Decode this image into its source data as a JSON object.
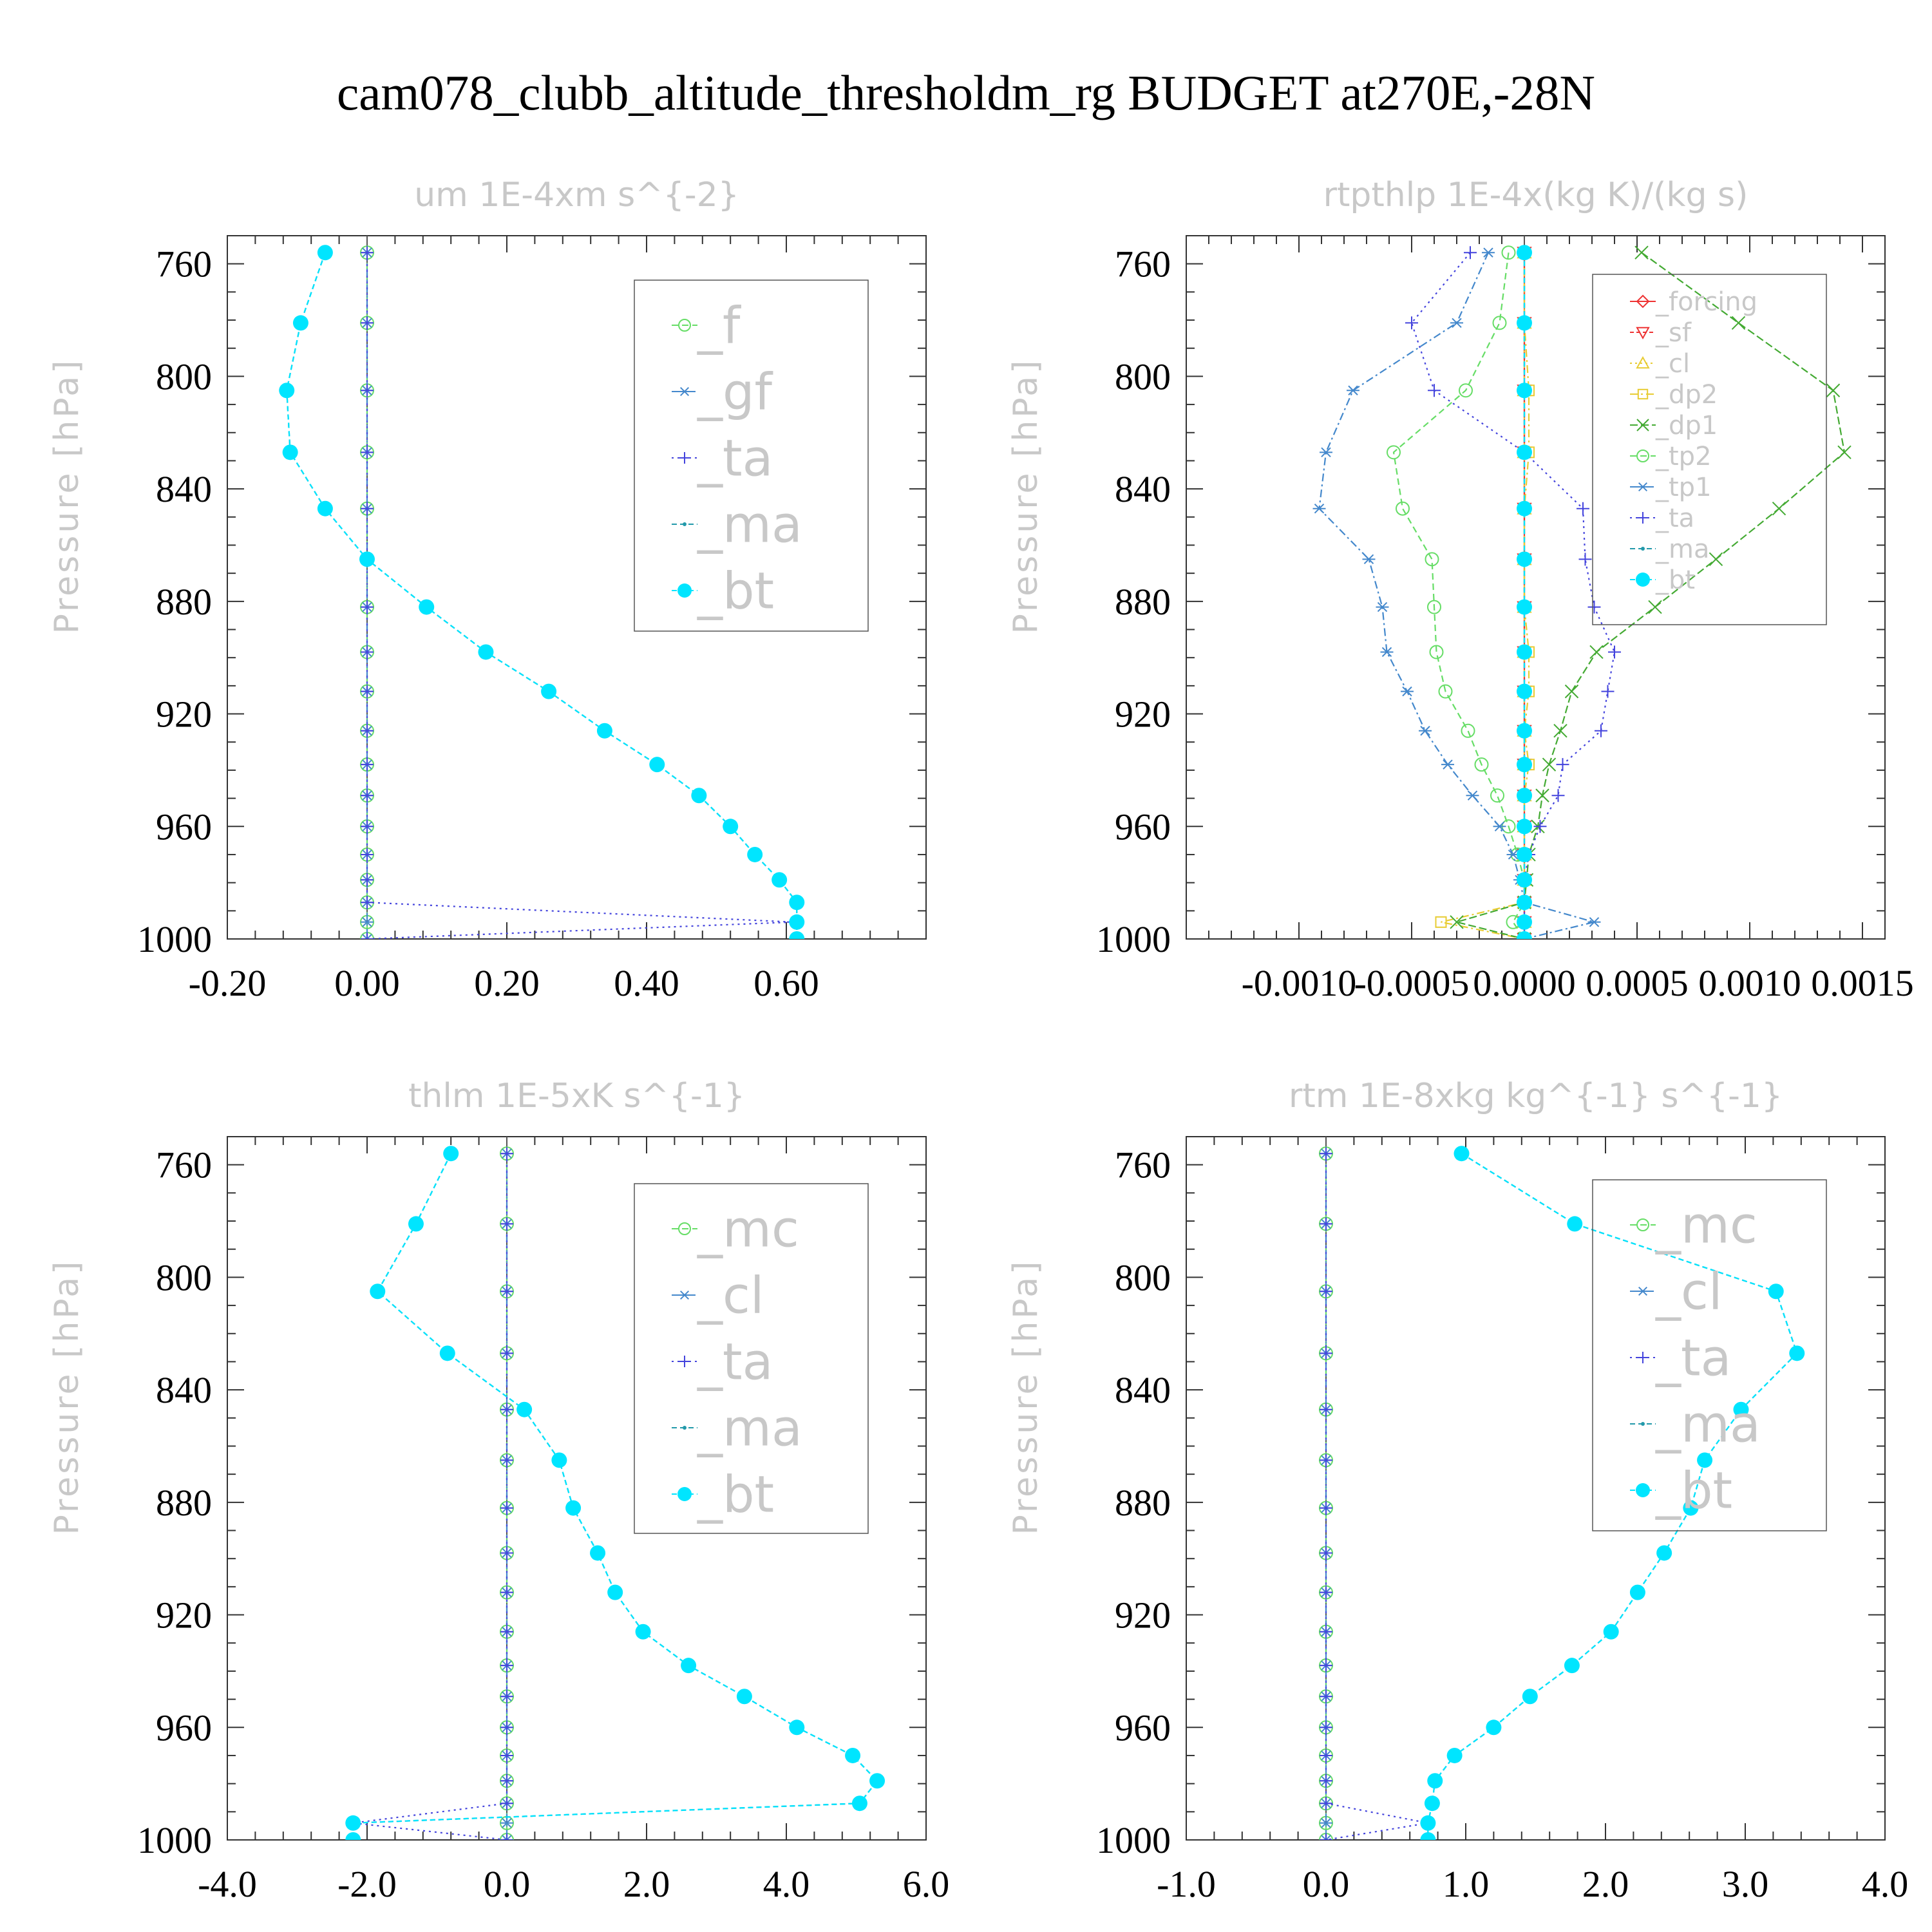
{
  "title": "cam078_clubb_altitude_thresholdm_rg  BUDGET at270E,-28N",
  "colors": {
    "f": "#66dd66",
    "gf": "#4488cc",
    "ta": "#4444dd",
    "ma": "#2299aa",
    "bt": "#00e5ff",
    "forcing": "#ee3333",
    "sf": "#ee3333",
    "cl_yellow": "#e8cc33",
    "dp2": "#e8cc33",
    "dp1": "#44aa33",
    "tp2": "#66dd66",
    "tp1": "#4488cc"
  },
  "chart_data": [
    {
      "type": "line",
      "title": "um   1E-4xm s^{-2}",
      "ylabel": "Pressure [hPa]",
      "xlim": [
        -0.2,
        0.8
      ],
      "ylim": [
        750,
        1000
      ],
      "xticks": [
        -0.2,
        0.0,
        0.2,
        0.4,
        0.6
      ],
      "xtick_labels": [
        "-0.20",
        "0.00",
        "0.20",
        "0.40",
        "0.60"
      ],
      "yticks": [
        760,
        800,
        840,
        880,
        920,
        960,
        1000
      ],
      "ytick_labels": [
        "760",
        "800",
        "840",
        "880",
        "920",
        "960",
        "1000"
      ],
      "legend_position": "top-right",
      "y": [
        756,
        781,
        805,
        827,
        847,
        865,
        882,
        898,
        912,
        926,
        938,
        949,
        960,
        970,
        979,
        987,
        994,
        1000
      ],
      "series": [
        {
          "name": "_f",
          "key": "f",
          "marker": "circle",
          "dash": "10,6",
          "values": [
            0,
            0,
            0,
            0,
            0,
            0,
            0,
            0,
            0,
            0,
            0,
            0,
            0,
            0,
            0,
            0,
            0,
            0
          ]
        },
        {
          "name": "_gf",
          "key": "gf",
          "marker": "asterisk",
          "dash": "12,5,3,5",
          "values": [
            0,
            0,
            0,
            0,
            0,
            0,
            0,
            0,
            0,
            0,
            0,
            0,
            0,
            0,
            0,
            0,
            0,
            0
          ]
        },
        {
          "name": "_ta",
          "key": "ta",
          "marker": "plus",
          "dash": "3,6",
          "values": [
            0,
            0,
            0,
            0,
            0,
            0,
            0,
            0,
            0,
            0,
            0,
            0,
            0,
            0,
            0,
            0,
            0.61,
            0
          ]
        },
        {
          "name": "_ma",
          "key": "ma",
          "marker": "dot",
          "dash": "8,5",
          "values": [
            -0.06,
            -0.095,
            -0.115,
            -0.11,
            -0.06,
            0.0,
            0.085,
            0.17,
            0.26,
            0.34,
            0.415,
            0.475,
            0.52,
            0.555,
            0.59,
            0.615,
            0.615,
            0.615
          ]
        },
        {
          "name": "_bt",
          "key": "bt",
          "marker": "filled",
          "dash": "8,5",
          "values": [
            -0.06,
            -0.095,
            -0.115,
            -0.11,
            -0.06,
            0.0,
            0.085,
            0.17,
            0.26,
            0.34,
            0.415,
            0.475,
            0.52,
            0.555,
            0.59,
            0.615,
            0.615,
            0.615
          ]
        }
      ]
    },
    {
      "type": "line",
      "title": "rtpthlp   1E-4x(kg K)/(kg s)",
      "ylabel": "Pressure [hPa]",
      "xlim": [
        -0.0015,
        0.0016
      ],
      "ylim": [
        750,
        1000
      ],
      "xticks": [
        -0.001,
        -0.0005,
        0.0,
        0.0005,
        0.001,
        0.0015
      ],
      "xtick_labels": [
        "-0.0010",
        "-0.0005",
        "0.0000",
        "0.0005",
        "0.0010",
        "0.0015"
      ],
      "yticks": [
        760,
        800,
        840,
        880,
        920,
        960,
        1000
      ],
      "ytick_labels": [
        "760",
        "800",
        "840",
        "880",
        "920",
        "960",
        "1000"
      ],
      "legend_position": "top-right",
      "y": [
        756,
        781,
        805,
        827,
        847,
        865,
        882,
        898,
        912,
        926,
        938,
        949,
        960,
        970,
        979,
        987,
        994,
        1000
      ],
      "series": [
        {
          "name": "_forcing",
          "key": "forcing",
          "marker": "diamond",
          "dash": "",
          "values": [
            0,
            0,
            0,
            0,
            0,
            0,
            0,
            0,
            0,
            0,
            0,
            0,
            0,
            0,
            0,
            0,
            0,
            0
          ]
        },
        {
          "name": "_sf",
          "key": "sf",
          "marker": "triangle-down",
          "dash": "6,4",
          "values": [
            0,
            0,
            0,
            0,
            0,
            0,
            0,
            0,
            0,
            0,
            0,
            0,
            0,
            0,
            0,
            0,
            0,
            0
          ]
        },
        {
          "name": "_cl",
          "key": "cl_yellow",
          "marker": "triangle",
          "dash": "3,5",
          "values": [
            0,
            0,
            0,
            0,
            0,
            0,
            0,
            0,
            0,
            0,
            0,
            0,
            0,
            0,
            0,
            0,
            0,
            0
          ]
        },
        {
          "name": "_dp2",
          "key": "dp2",
          "marker": "square",
          "dash": "12,5,3,5",
          "values": [
            0,
            0,
            2e-05,
            2e-05,
            0,
            0,
            0,
            2e-05,
            2e-05,
            0,
            2e-05,
            0,
            0,
            0,
            0,
            0,
            -0.00037,
            0
          ]
        },
        {
          "name": "_dp1",
          "key": "dp1",
          "marker": "cross",
          "dash": "12,5",
          "values": [
            0.00052,
            0.00095,
            0.00137,
            0.00142,
            0.00113,
            0.00085,
            0.00058,
            0.00032,
            0.00021,
            0.00016,
            0.00011,
            8e-05,
            6e-05,
            2e-05,
            1e-05,
            0,
            -0.0003,
            0
          ]
        },
        {
          "name": "_tp2",
          "key": "tp2",
          "marker": "circle",
          "dash": "10,6",
          "values": [
            -7e-05,
            -0.00011,
            -0.00026,
            -0.00058,
            -0.00054,
            -0.00041,
            -0.0004,
            -0.00039,
            -0.00035,
            -0.00025,
            -0.00019,
            -0.00012,
            -7e-05,
            -3e-05,
            0,
            0,
            -5e-05,
            0
          ]
        },
        {
          "name": "_tp1",
          "key": "tp1",
          "marker": "asterisk",
          "dash": "12,5,3,5",
          "values": [
            -0.00016,
            -0.0003,
            -0.00076,
            -0.00088,
            -0.00091,
            -0.00069,
            -0.00063,
            -0.00061,
            -0.00052,
            -0.00044,
            -0.00034,
            -0.00023,
            -0.00011,
            -5e-05,
            -2e-05,
            0,
            0.00031,
            0
          ]
        },
        {
          "name": "_ta",
          "key": "ta",
          "marker": "plus",
          "dash": "3,6",
          "values": [
            -0.00024,
            -0.0005,
            -0.0004,
            0.0,
            0.00026,
            0.00027,
            0.00031,
            0.0004,
            0.00037,
            0.00034,
            0.00017,
            0.00015,
            7e-05,
            2e-05,
            0,
            0,
            0,
            0
          ]
        },
        {
          "name": "_ma",
          "key": "ma",
          "marker": "dot",
          "dash": "8,5",
          "values": [
            0,
            0,
            0,
            0,
            0,
            0,
            0,
            0,
            0,
            0,
            0,
            0,
            0,
            0,
            0,
            0,
            0,
            0
          ]
        },
        {
          "name": "_bt",
          "key": "bt",
          "marker": "filled",
          "dash": "8,5",
          "values": [
            0,
            0,
            0,
            0,
            0,
            0,
            0,
            0,
            0,
            0,
            0,
            0,
            0,
            0,
            0,
            0,
            0,
            0
          ]
        }
      ]
    },
    {
      "type": "line",
      "title": "thlm   1E-5xK s^{-1}",
      "ylabel": "Pressure [hPa]",
      "xlim": [
        -4.0,
        6.0
      ],
      "ylim": [
        750,
        1000
      ],
      "xticks": [
        -4,
        -2,
        0,
        2,
        4,
        6
      ],
      "xtick_labels": [
        "-4.0",
        "-2.0",
        "0.0",
        "2.0",
        "4.0",
        "6.0"
      ],
      "yticks": [
        760,
        800,
        840,
        880,
        920,
        960,
        1000
      ],
      "ytick_labels": [
        "760",
        "800",
        "840",
        "880",
        "920",
        "960",
        "1000"
      ],
      "legend_position": "top-right",
      "y": [
        756,
        781,
        805,
        827,
        847,
        865,
        882,
        898,
        912,
        926,
        938,
        949,
        960,
        970,
        979,
        987,
        994,
        1000
      ],
      "series": [
        {
          "name": "_mc",
          "key": "f",
          "marker": "circle",
          "dash": "10,6",
          "values": [
            0,
            0,
            0,
            0,
            0,
            0,
            0,
            0,
            0,
            0,
            0,
            0,
            0,
            0,
            0,
            0,
            0,
            0
          ]
        },
        {
          "name": "_cl",
          "key": "gf",
          "marker": "asterisk",
          "dash": "12,5,3,5",
          "values": [
            0,
            0,
            0,
            0,
            0,
            0,
            0,
            0,
            0,
            0,
            0,
            0,
            0,
            0,
            0,
            0,
            0,
            0
          ]
        },
        {
          "name": "_ta",
          "key": "ta",
          "marker": "plus",
          "dash": "3,6",
          "values": [
            0,
            0,
            0,
            0,
            0,
            0,
            0,
            0,
            0,
            0,
            0,
            0,
            0,
            0,
            0,
            0,
            -2.2,
            0
          ]
        },
        {
          "name": "_ma",
          "key": "ma",
          "marker": "dot",
          "dash": "8,5",
          "values": [
            -0.8,
            -1.3,
            -1.85,
            -0.85,
            0.25,
            0.75,
            0.95,
            1.3,
            1.55,
            1.95,
            2.6,
            3.4,
            4.15,
            4.95,
            5.3,
            5.05,
            -2.2,
            -2.2
          ]
        },
        {
          "name": "_bt",
          "key": "bt",
          "marker": "filled",
          "dash": "8,5",
          "values": [
            -0.8,
            -1.3,
            -1.85,
            -0.85,
            0.25,
            0.75,
            0.95,
            1.3,
            1.55,
            1.95,
            2.6,
            3.4,
            4.15,
            4.95,
            5.3,
            5.05,
            -2.2,
            -2.2
          ]
        }
      ]
    },
    {
      "type": "line",
      "title": "rtm   1E-8xkg kg^{-1} s^{-1}",
      "ylabel": "Pressure [hPa]",
      "xlim": [
        -1.0,
        4.0
      ],
      "ylim": [
        750,
        1000
      ],
      "xticks": [
        -1,
        0,
        1,
        2,
        3,
        4
      ],
      "xtick_labels": [
        "-1.0",
        "0.0",
        "1.0",
        "2.0",
        "3.0",
        "4.0"
      ],
      "yticks": [
        760,
        800,
        840,
        880,
        920,
        960,
        1000
      ],
      "ytick_labels": [
        "760",
        "800",
        "840",
        "880",
        "920",
        "960",
        "1000"
      ],
      "legend_position": "top-right",
      "y": [
        756,
        781,
        805,
        827,
        847,
        865,
        882,
        898,
        912,
        926,
        938,
        949,
        960,
        970,
        979,
        987,
        994,
        1000
      ],
      "series": [
        {
          "name": "_mc",
          "key": "f",
          "marker": "circle",
          "dash": "10,6",
          "values": [
            0,
            0,
            0,
            0,
            0,
            0,
            0,
            0,
            0,
            0,
            0,
            0,
            0,
            0,
            0,
            0,
            0,
            0
          ]
        },
        {
          "name": "_cl",
          "key": "gf",
          "marker": "asterisk",
          "dash": "12,5,3,5",
          "values": [
            0,
            0,
            0,
            0,
            0,
            0,
            0,
            0,
            0,
            0,
            0,
            0,
            0,
            0,
            0,
            0,
            0,
            0
          ]
        },
        {
          "name": "_ta",
          "key": "ta",
          "marker": "plus",
          "dash": "3,6",
          "values": [
            0,
            0,
            0,
            0,
            0,
            0,
            0,
            0,
            0,
            0,
            0,
            0,
            0,
            0,
            0,
            0,
            0.73,
            0
          ]
        },
        {
          "name": "_ma",
          "key": "ma",
          "marker": "dot",
          "dash": "8,5",
          "values": [
            0.97,
            1.78,
            3.22,
            3.37,
            2.97,
            2.71,
            2.61,
            2.42,
            2.23,
            2.04,
            1.76,
            1.46,
            1.2,
            0.92,
            0.78,
            0.76,
            0.73,
            0.73
          ]
        },
        {
          "name": "_bt",
          "key": "bt",
          "marker": "filled",
          "dash": "8,5",
          "values": [
            0.97,
            1.78,
            3.22,
            3.37,
            2.97,
            2.71,
            2.61,
            2.42,
            2.23,
            2.04,
            1.76,
            1.46,
            1.2,
            0.92,
            0.78,
            0.76,
            0.73,
            0.73
          ]
        }
      ]
    }
  ]
}
